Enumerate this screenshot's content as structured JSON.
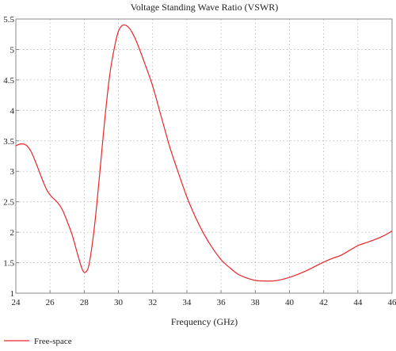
{
  "chart_data": {
    "type": "line",
    "title": "Voltage Standing Wave Ratio (VSWR)",
    "xlabel": "Frequency (GHz)",
    "ylabel": "",
    "xlim": [
      24,
      46
    ],
    "ylim": [
      1,
      5.5
    ],
    "xticks": [
      24,
      26,
      28,
      30,
      32,
      34,
      36,
      38,
      40,
      42,
      44,
      46
    ],
    "yticks": [
      1,
      1.5,
      2,
      2.5,
      3,
      3.5,
      4,
      4.5,
      5,
      5.5
    ],
    "xtick_labels": [
      "24",
      "26",
      "28",
      "30",
      "32",
      "34",
      "36",
      "38",
      "40",
      "42",
      "44",
      "46"
    ],
    "ytick_labels": [
      "1",
      "1.5",
      "2",
      "2.5",
      "3",
      "3.5",
      "4",
      "4.5",
      "5",
      "5.5"
    ],
    "grid": true,
    "legend_position": "bottom-left",
    "series": [
      {
        "name": "Free-space",
        "color": "#e8262a",
        "x": [
          24.0,
          24.3,
          24.6,
          24.9,
          25.2,
          25.5,
          25.8,
          26.1,
          26.4,
          26.7,
          27.0,
          27.3,
          27.6,
          27.9,
          28.1,
          28.3,
          28.6,
          28.9,
          29.2,
          29.5,
          29.8,
          30.0,
          30.2,
          30.4,
          30.6,
          30.8,
          31.1,
          31.5,
          32.0,
          32.5,
          33.0,
          33.5,
          34.0,
          34.5,
          35.0,
          35.5,
          36.0,
          36.5,
          37.0,
          37.5,
          38.0,
          38.5,
          39.0,
          39.5,
          40.0,
          40.5,
          41.0,
          41.5,
          42.0,
          42.5,
          43.0,
          43.5,
          44.0,
          44.5,
          45.0,
          45.5,
          46.0
        ],
        "y": [
          3.42,
          3.45,
          3.43,
          3.32,
          3.12,
          2.9,
          2.7,
          2.58,
          2.5,
          2.38,
          2.18,
          1.95,
          1.65,
          1.38,
          1.35,
          1.5,
          2.1,
          2.95,
          3.85,
          4.6,
          5.08,
          5.3,
          5.39,
          5.4,
          5.36,
          5.28,
          5.1,
          4.8,
          4.4,
          3.9,
          3.4,
          2.98,
          2.58,
          2.25,
          1.97,
          1.74,
          1.55,
          1.42,
          1.31,
          1.25,
          1.21,
          1.2,
          1.2,
          1.22,
          1.26,
          1.31,
          1.37,
          1.44,
          1.51,
          1.57,
          1.62,
          1.7,
          1.78,
          1.83,
          1.88,
          1.94,
          2.02
        ]
      }
    ]
  }
}
